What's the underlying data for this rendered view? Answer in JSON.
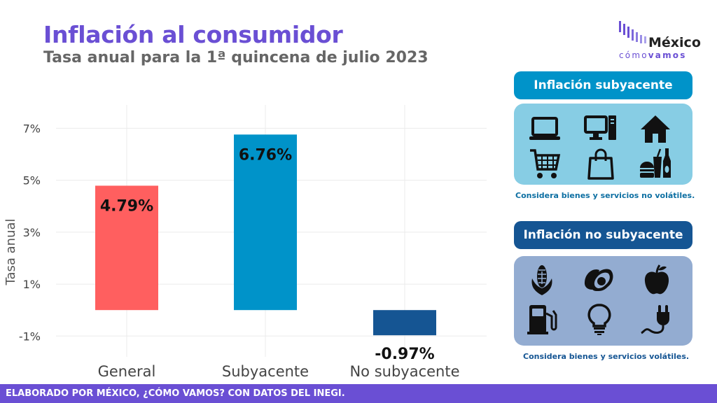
{
  "header": {
    "title": "Inflación al consumidor",
    "subtitle": "Tasa anual para la 1ª quincena de julio 2023"
  },
  "logo": {
    "word": "México",
    "sub_light": "cómo",
    "sub_bold": "vamos"
  },
  "chart_data": {
    "type": "bar",
    "title": "",
    "xlabel": "",
    "ylabel": "Tasa anual",
    "categories": [
      "General",
      "Subyacente",
      "No subyacente"
    ],
    "values": [
      4.79,
      6.76,
      -0.97
    ],
    "value_labels": [
      "4.79%",
      "6.76%",
      "-0.97%"
    ],
    "colors": [
      "#ff5f5f",
      "#0093c9",
      "#155593"
    ],
    "yticks": [
      -1,
      1,
      3,
      5,
      7
    ],
    "ytick_labels": [
      "-1%",
      "1%",
      "3%",
      "5%",
      "7%"
    ],
    "ylim": [
      -1.8,
      7.9
    ],
    "grid": true
  },
  "panels": {
    "core": {
      "title": "Inflación subyacente",
      "note": "Considera bienes y servicios no volátiles.",
      "head_color": "#0093c9",
      "box_color": "#87cde4",
      "icons": [
        "laptop-icon",
        "desktop-computer-icon",
        "house-icon",
        "shopping-cart-icon",
        "shopping-bag-icon",
        "fast-food-icon"
      ]
    },
    "noncore": {
      "title": "Inflación no subyacente",
      "note": "Considera bienes y servicios volátiles.",
      "head_color": "#155593",
      "box_color": "#93acd1",
      "icons": [
        "corn-icon",
        "avocado-icon",
        "apple-icon",
        "fuel-pump-icon",
        "light-bulb-icon",
        "electric-plug-icon"
      ]
    }
  },
  "footer": {
    "text": "ELABORADO POR MÉXICO, ¿CÓMO VAMOS? CON DATOS DEL INEGI."
  }
}
